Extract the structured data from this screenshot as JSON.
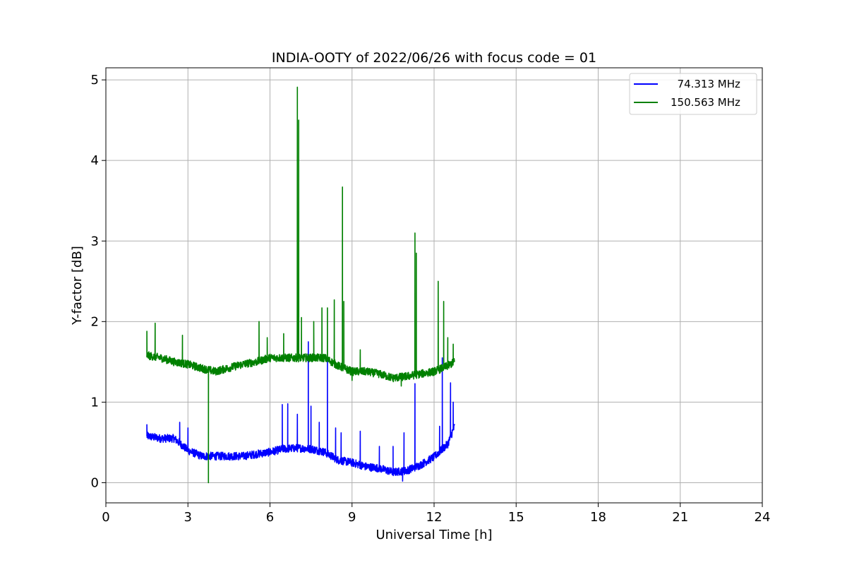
{
  "chart_data": {
    "type": "line",
    "title": "INDIA-OOTY of 2022/06/26 with focus code = 01",
    "xlabel": "Universal Time [h]",
    "ylabel": "Y-factor [dB]",
    "xlim": [
      0,
      24
    ],
    "ylim": [
      -0.25,
      5.15
    ],
    "xticks": [
      0,
      3,
      6,
      9,
      12,
      15,
      18,
      21,
      24
    ],
    "yticks": [
      0,
      1,
      2,
      3,
      4,
      5
    ],
    "grid": true,
    "legend_position": "top-right",
    "series": [
      {
        "name": "  74.313 MHz",
        "color": "#0000ff",
        "baseline": [
          [
            1.5,
            0.58
          ],
          [
            2.0,
            0.55
          ],
          [
            2.5,
            0.55
          ],
          [
            3.0,
            0.4
          ],
          [
            3.5,
            0.33
          ],
          [
            4.0,
            0.33
          ],
          [
            5.0,
            0.33
          ],
          [
            6.0,
            0.38
          ],
          [
            6.5,
            0.42
          ],
          [
            7.0,
            0.43
          ],
          [
            7.5,
            0.42
          ],
          [
            8.0,
            0.38
          ],
          [
            8.5,
            0.28
          ],
          [
            9.0,
            0.25
          ],
          [
            9.5,
            0.2
          ],
          [
            10.0,
            0.18
          ],
          [
            10.5,
            0.13
          ],
          [
            11.0,
            0.15
          ],
          [
            11.5,
            0.22
          ],
          [
            12.0,
            0.32
          ],
          [
            12.5,
            0.48
          ],
          [
            12.75,
            0.7
          ]
        ],
        "noise": 0.05,
        "spikes": [
          [
            1.5,
            0.72
          ],
          [
            2.7,
            0.75
          ],
          [
            3.0,
            0.68
          ],
          [
            6.45,
            0.97
          ],
          [
            6.65,
            0.98
          ],
          [
            7.0,
            0.85
          ],
          [
            7.4,
            1.75
          ],
          [
            7.5,
            0.95
          ],
          [
            7.8,
            0.75
          ],
          [
            8.1,
            1.53
          ],
          [
            8.4,
            0.68
          ],
          [
            8.6,
            0.62
          ],
          [
            9.3,
            0.64
          ],
          [
            10.0,
            0.45
          ],
          [
            10.5,
            0.45
          ],
          [
            10.9,
            0.62
          ],
          [
            11.3,
            1.23
          ],
          [
            12.2,
            0.7
          ],
          [
            12.3,
            1.55
          ],
          [
            12.6,
            1.24
          ],
          [
            12.7,
            1.0
          ]
        ],
        "dips": [
          [
            10.85,
            0.02
          ]
        ]
      },
      {
        "name": "150.563 MHz",
        "color": "#008000",
        "baseline": [
          [
            1.5,
            1.58
          ],
          [
            2.0,
            1.55
          ],
          [
            2.5,
            1.5
          ],
          [
            3.0,
            1.47
          ],
          [
            3.5,
            1.42
          ],
          [
            4.0,
            1.38
          ],
          [
            5.0,
            1.47
          ],
          [
            5.5,
            1.5
          ],
          [
            6.0,
            1.55
          ],
          [
            6.5,
            1.55
          ],
          [
            7.0,
            1.55
          ],
          [
            7.5,
            1.55
          ],
          [
            8.0,
            1.55
          ],
          [
            8.5,
            1.45
          ],
          [
            9.0,
            1.38
          ],
          [
            9.5,
            1.38
          ],
          [
            10.0,
            1.35
          ],
          [
            10.5,
            1.3
          ],
          [
            11.0,
            1.32
          ],
          [
            11.5,
            1.35
          ],
          [
            12.0,
            1.38
          ],
          [
            12.5,
            1.45
          ],
          [
            12.75,
            1.5
          ]
        ],
        "noise": 0.05,
        "spikes": [
          [
            1.5,
            1.88
          ],
          [
            1.8,
            1.98
          ],
          [
            2.8,
            1.83
          ],
          [
            5.6,
            2.0
          ],
          [
            5.9,
            1.8
          ],
          [
            6.5,
            1.85
          ],
          [
            7.0,
            4.91
          ],
          [
            7.05,
            4.5
          ],
          [
            7.15,
            2.05
          ],
          [
            7.6,
            2.0
          ],
          [
            7.9,
            2.17
          ],
          [
            8.1,
            2.17
          ],
          [
            8.35,
            2.27
          ],
          [
            8.65,
            3.67
          ],
          [
            8.7,
            2.25
          ],
          [
            9.3,
            1.65
          ],
          [
            11.3,
            3.1
          ],
          [
            11.35,
            2.85
          ],
          [
            12.15,
            2.5
          ],
          [
            12.35,
            2.25
          ],
          [
            12.5,
            1.8
          ],
          [
            12.7,
            1.72
          ]
        ],
        "dips": [
          [
            3.75,
            0.0
          ],
          [
            9.0,
            1.27
          ],
          [
            10.8,
            1.2
          ]
        ]
      }
    ]
  }
}
